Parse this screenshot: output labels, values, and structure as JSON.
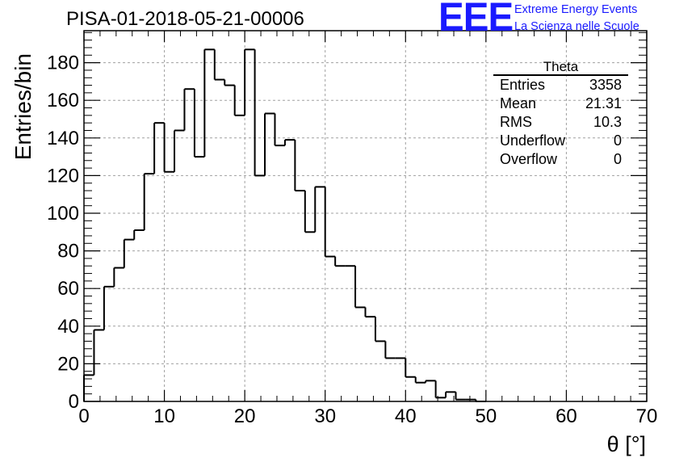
{
  "header": {
    "title": "PISA-01-2018-05-21-00006",
    "logo_text": "EEE",
    "logo_line1": "Extreme Energy Events",
    "logo_line2": "La Scienza nelle Scuole"
  },
  "stats_box": {
    "title": "Theta",
    "rows": [
      {
        "label": "Entries",
        "value": "3358"
      },
      {
        "label": "Mean",
        "value": "21.31"
      },
      {
        "label": "RMS",
        "value": "10.3"
      },
      {
        "label": "Underflow",
        "value": "0"
      },
      {
        "label": "Overflow",
        "value": "0"
      }
    ]
  },
  "colors": {
    "line": "#000000",
    "grid": "#a0a0a0",
    "logo": "#1a1aff"
  },
  "chart_data": {
    "type": "histogram",
    "title": "PISA-01-2018-05-21-00006",
    "xlabel": "θ [°]",
    "ylabel": "Entries/bin",
    "xlim": [
      0,
      70
    ],
    "ylim": [
      0,
      197
    ],
    "bin_width": 1.25,
    "x_ticks": [
      "0",
      "10",
      "20",
      "30",
      "40",
      "50",
      "60",
      "70"
    ],
    "y_ticks": [
      "0",
      "20",
      "40",
      "60",
      "80",
      "100",
      "120",
      "140",
      "160",
      "180"
    ],
    "grid": true,
    "values": [
      14,
      38,
      61,
      71,
      86,
      91,
      121,
      148,
      122,
      144,
      166,
      130,
      187,
      171,
      168,
      152,
      187,
      120,
      153,
      136,
      139,
      112,
      90,
      114,
      77,
      72,
      72,
      50,
      45,
      32,
      23,
      23,
      13,
      10,
      11,
      2,
      5,
      1,
      1,
      0,
      0,
      0,
      0,
      0,
      0,
      0,
      0,
      0,
      0,
      0,
      0,
      0,
      0,
      0,
      0,
      0
    ]
  }
}
